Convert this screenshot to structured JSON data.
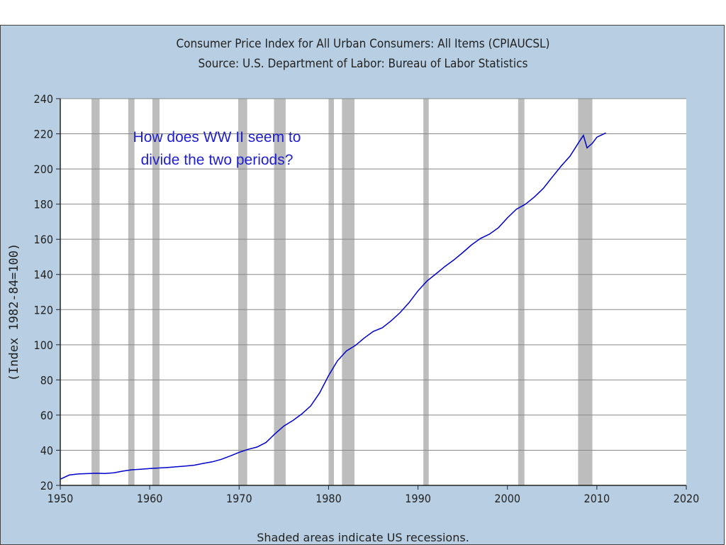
{
  "chart_data": {
    "type": "line",
    "title": "Consumer Price Index for All Urban Consumers: All Items (CPIAUCSL)",
    "subtitle": "Source: U.S. Department of Labor: Bureau of Labor Statistics",
    "ylabel": "(Index 1982-84=100)",
    "xlabel": "",
    "xlim": [
      1950,
      2020
    ],
    "ylim": [
      20,
      240
    ],
    "xticks": [
      1950,
      1960,
      1970,
      1980,
      1990,
      2000,
      2010,
      2020
    ],
    "yticks": [
      20,
      40,
      60,
      80,
      100,
      120,
      140,
      160,
      180,
      200,
      220,
      240
    ],
    "grid": true,
    "line_color": "#0000cc",
    "recession_color": "#bdbdbd",
    "plot_background": "#ffffff",
    "footnote": "Shaded areas indicate US recessions.",
    "annotation": "How does WW II seem to divide the two periods?",
    "recessions": [
      [
        1953.5,
        1954.4
      ],
      [
        1957.6,
        1958.3
      ],
      [
        1960.3,
        1961.1
      ],
      [
        1969.9,
        1970.9
      ],
      [
        1973.9,
        1975.2
      ],
      [
        1980.0,
        1980.6
      ],
      [
        1981.5,
        1982.9
      ],
      [
        1990.6,
        1991.2
      ],
      [
        2001.2,
        2001.9
      ],
      [
        2007.9,
        2009.5
      ]
    ],
    "series": [
      {
        "x": [
          1950,
          1951,
          1952,
          1953,
          1954,
          1955,
          1956,
          1957,
          1958,
          1959,
          1960,
          1961,
          1962,
          1963,
          1964,
          1965,
          1966,
          1967,
          1968,
          1969,
          1970,
          1971,
          1972,
          1973,
          1974,
          1975,
          1976,
          1977,
          1978,
          1979,
          1980,
          1981,
          1982,
          1983,
          1984,
          1985,
          1986,
          1987,
          1988,
          1989,
          1990,
          1991,
          1992,
          1993,
          1994,
          1995,
          1996,
          1997,
          1998,
          1999,
          2000,
          2001,
          2002,
          2003,
          2004,
          2005,
          2006,
          2007,
          2008,
          2008.5,
          2008.9,
          2009.5,
          2010,
          2011
        ],
        "values": [
          23.5,
          25.9,
          26.5,
          26.7,
          26.9,
          26.8,
          27.2,
          28.1,
          28.9,
          29.2,
          29.6,
          29.9,
          30.2,
          30.6,
          31.0,
          31.5,
          32.5,
          33.4,
          34.8,
          36.7,
          38.8,
          40.5,
          41.8,
          44.4,
          49.3,
          53.8,
          56.9,
          60.6,
          65.2,
          72.6,
          82.4,
          90.9,
          96.5,
          99.6,
          103.9,
          107.6,
          109.6,
          113.6,
          118.3,
          124.0,
          130.7,
          136.2,
          140.3,
          144.5,
          148.2,
          152.4,
          156.9,
          160.5,
          163.0,
          166.6,
          172.2,
          177.1,
          179.9,
          184.0,
          188.9,
          195.3,
          201.6,
          207.3,
          215.3,
          219.1,
          212.0,
          214.6,
          218.1,
          220.5
        ]
      }
    ]
  }
}
